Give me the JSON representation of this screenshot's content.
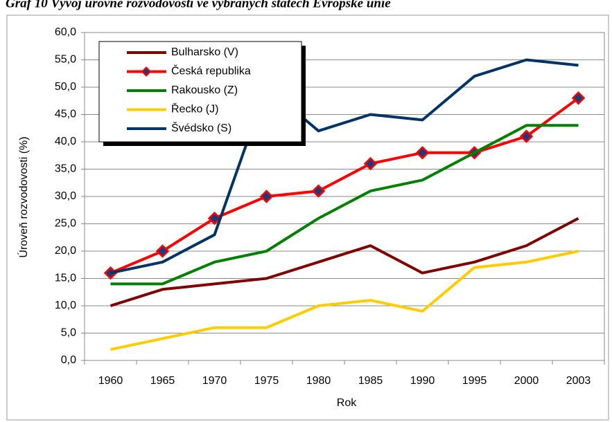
{
  "chart_data": {
    "type": "line",
    "title": "Graf 10 Vývoj úrovně rozvodovosti ve vybraných státech Evropské unie",
    "x_label": "Rok",
    "y_label": "Úroveň rozvodovosti (%)",
    "categories": [
      "1960",
      "1965",
      "1970",
      "1975",
      "1980",
      "1985",
      "1990",
      "1995",
      "2000",
      "2003"
    ],
    "series": [
      {
        "name": "Bulharsko (V)",
        "color": "#800000",
        "values": [
          10,
          13,
          14,
          15,
          18,
          21,
          16,
          18,
          21,
          26
        ]
      },
      {
        "name": "Česká republika",
        "color": "#ff0000",
        "marker": "diamond",
        "marker_color": "#1f3a7a",
        "values": [
          16,
          20,
          26,
          30,
          31,
          36,
          38,
          38,
          41,
          48
        ]
      },
      {
        "name": "Rakousko (Z)",
        "color": "#008000",
        "values": [
          14,
          14,
          18,
          20,
          26,
          31,
          33,
          38,
          43,
          43
        ]
      },
      {
        "name": "Řecko (J)",
        "color": "#ffcc00",
        "values": [
          2,
          4,
          6,
          6,
          10,
          11,
          9,
          17,
          18,
          20
        ]
      },
      {
        "name": "Švédsko (S)",
        "color": "#003366",
        "values": [
          16,
          18,
          23,
          50,
          42,
          45,
          44,
          52,
          55,
          54
        ]
      }
    ],
    "ylim": [
      0,
      60
    ],
    "yticks": [
      {
        "value": 0,
        "label": "0,0"
      },
      {
        "value": 5,
        "label": "5,0"
      },
      {
        "value": 10,
        "label": "10,0"
      },
      {
        "value": 15,
        "label": "15,0"
      },
      {
        "value": 20,
        "label": "20,0"
      },
      {
        "value": 25,
        "label": "25,0"
      },
      {
        "value": 30,
        "label": "30,0"
      },
      {
        "value": 35,
        "label": "35,0"
      },
      {
        "value": 40,
        "label": "40,0"
      },
      {
        "value": 45,
        "label": "45,0"
      },
      {
        "value": 50,
        "label": "50,0"
      },
      {
        "value": 55,
        "label": "55,0"
      },
      {
        "value": 60,
        "label": "60,0"
      }
    ],
    "grid": true,
    "legend": "top-left"
  }
}
